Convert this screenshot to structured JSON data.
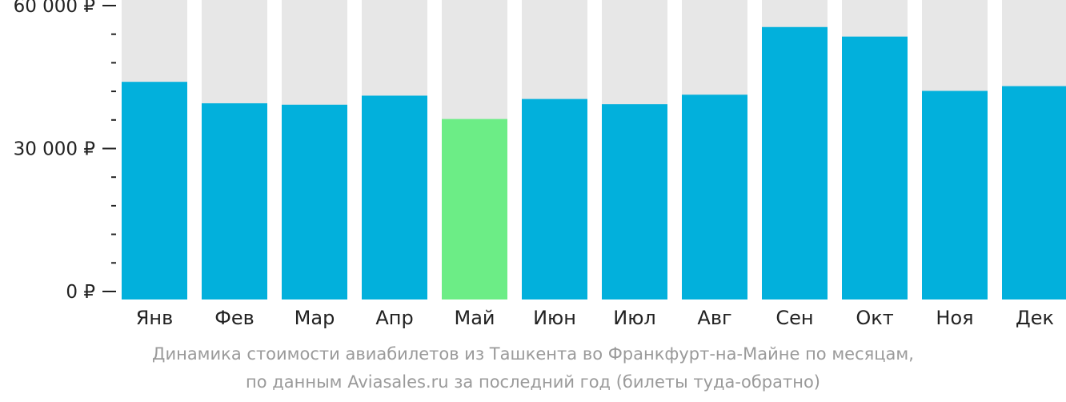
{
  "chart_data": {
    "type": "bar",
    "categories": [
      "Янв",
      "Фев",
      "Мар",
      "Апр",
      "Май",
      "Июн",
      "Июл",
      "Авг",
      "Сен",
      "Окт",
      "Ноя",
      "Дек"
    ],
    "values": [
      44000,
      39500,
      39200,
      41100,
      36200,
      40400,
      39300,
      41300,
      55500,
      53500,
      42100,
      43100
    ],
    "highlight_index": 4,
    "ylim": [
      0,
      60000
    ],
    "y_ticks": [
      {
        "value": 0,
        "label": "0 ₽"
      },
      {
        "value": 30000,
        "label": "30 000 ₽"
      },
      {
        "value": 60000,
        "label": "60 000 ₽"
      }
    ],
    "minor_tick_step": 6000,
    "grid": false,
    "xlabel": "",
    "ylabel": "",
    "colors": {
      "bar": "#02b0dc",
      "highlight": "#6ced86",
      "background_bar": "#e7e7e7",
      "axis_text": "#222222",
      "caption": "#9a9a9a"
    }
  },
  "caption": {
    "line1": "Динамика стоимости авиабилетов из Ташкента во Франкфурт-на-Майне по месяцам,",
    "line2": "по данным Aviasales.ru за последний год (билеты туда-обратно)"
  }
}
